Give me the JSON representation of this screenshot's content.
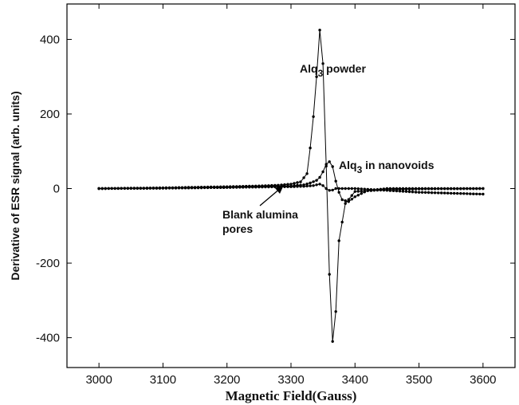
{
  "chart_data": {
    "type": "scatter",
    "xlabel": "Magnetic Field(Gauss)",
    "ylabel": "Derivative of ESR signal (arb. units)",
    "xlim": [
      2950,
      3650
    ],
    "ylim": [
      -480,
      495
    ],
    "xticks": [
      3000,
      3100,
      3200,
      3300,
      3400,
      3500,
      3600
    ],
    "yticks": [
      -400,
      -200,
      0,
      200,
      400
    ],
    "ytick_labels": [
      "-400",
      "-200",
      "0",
      "200",
      "400"
    ],
    "grid": false,
    "legend": "none",
    "series": [
      {
        "x": [
          3000,
          3100,
          3200,
          3250,
          3280,
          3300,
          3315,
          3325,
          3333,
          3340,
          3345,
          3350,
          3355,
          3360,
          3365,
          3370,
          3375,
          3385,
          3400,
          3450,
          3500,
          3600
        ],
        "y": [
          0,
          2,
          5,
          7,
          9,
          12,
          18,
          40,
          150,
          300,
          425,
          335,
          60,
          -230,
          -410,
          -330,
          -140,
          -40,
          -8,
          -3,
          -1,
          0
        ]
      },
      {
        "x": [
          3000,
          3100,
          3200,
          3250,
          3300,
          3320,
          3330,
          3340,
          3345,
          3350,
          3355,
          3358,
          3362,
          3366,
          3370,
          3375,
          3380,
          3390,
          3400,
          3420,
          3450,
          3500,
          3600
        ],
        "y": [
          0,
          1,
          3,
          5,
          7,
          10,
          15,
          22,
          30,
          45,
          65,
          74,
          70,
          55,
          20,
          -10,
          -30,
          -35,
          -22,
          -5,
          0,
          0,
          0
        ]
      },
      {
        "x": [
          3000,
          3100,
          3200,
          3250,
          3300,
          3320,
          3335,
          3345,
          3350,
          3355,
          3360,
          3365,
          3370,
          3380,
          3400,
          3450,
          3500,
          3600
        ],
        "y": [
          0,
          1,
          3,
          4,
          5,
          6,
          8,
          12,
          8,
          0,
          -5,
          -4,
          0,
          0,
          0,
          -5,
          -10,
          -15
        ]
      }
    ],
    "annotations": [
      {
        "text": "Alq",
        "sub": "3",
        "tail": " powder"
      },
      {
        "text": "Alq",
        "sub": "3",
        "tail": " in nanovoids"
      },
      {
        "lines": [
          "Blank alumina",
          "pores"
        ]
      }
    ],
    "colors": {
      "line": "#000000",
      "axis": "#000000",
      "background": "#ffffff"
    }
  }
}
